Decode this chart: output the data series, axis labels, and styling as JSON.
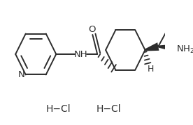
{
  "bg_color": "#ffffff",
  "line_color": "#2d2d2d",
  "lw": 1.4,
  "hcl1": [
    0.355,
    0.13
  ],
  "hcl2": [
    0.66,
    0.13
  ],
  "hcl_fs": 10,
  "hcl_text": "H−Cl"
}
